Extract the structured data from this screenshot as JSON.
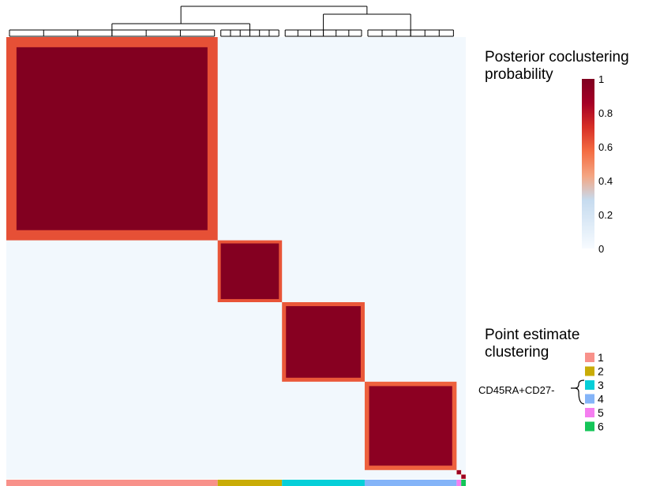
{
  "chart_data": {
    "type": "heatmap",
    "title": "Posterior coclustering probability",
    "colorbar": {
      "min": 0,
      "max": 1,
      "ticks": [
        "1",
        "0.8",
        "0.6",
        "0.4",
        "0.2",
        "0"
      ],
      "tick_values": [
        1,
        0.8,
        0.6,
        0.4,
        0.2,
        0
      ],
      "colors": [
        "#f7fbff",
        "#deebf7",
        "#c6dbef",
        "#f4a582",
        "#f46d43",
        "#d73027",
        "#a50026",
        "#7f0020"
      ]
    },
    "legend_title": "Point estimate clustering",
    "clusters": [
      {
        "label": "1",
        "color": "#f8918a",
        "share": 0.46
      },
      {
        "label": "2",
        "color": "#c9ac06",
        "share": 0.14
      },
      {
        "label": "3",
        "color": "#06cfd8",
        "share": 0.18
      },
      {
        "label": "4",
        "color": "#84b4f8",
        "share": 0.2
      },
      {
        "label": "5",
        "color": "#f57ef0",
        "share": 0.01
      },
      {
        "label": "6",
        "color": "#14c558",
        "share": 0.01
      }
    ],
    "within_cluster_probability": [
      0.99,
      0.98,
      0.97,
      0.95,
      0.9,
      0.9
    ],
    "between_cluster_probability": 0.03,
    "annotation": {
      "text": "CD45RA+CD27-",
      "clusters": [
        "3",
        "4"
      ]
    },
    "dendrogram": true
  }
}
